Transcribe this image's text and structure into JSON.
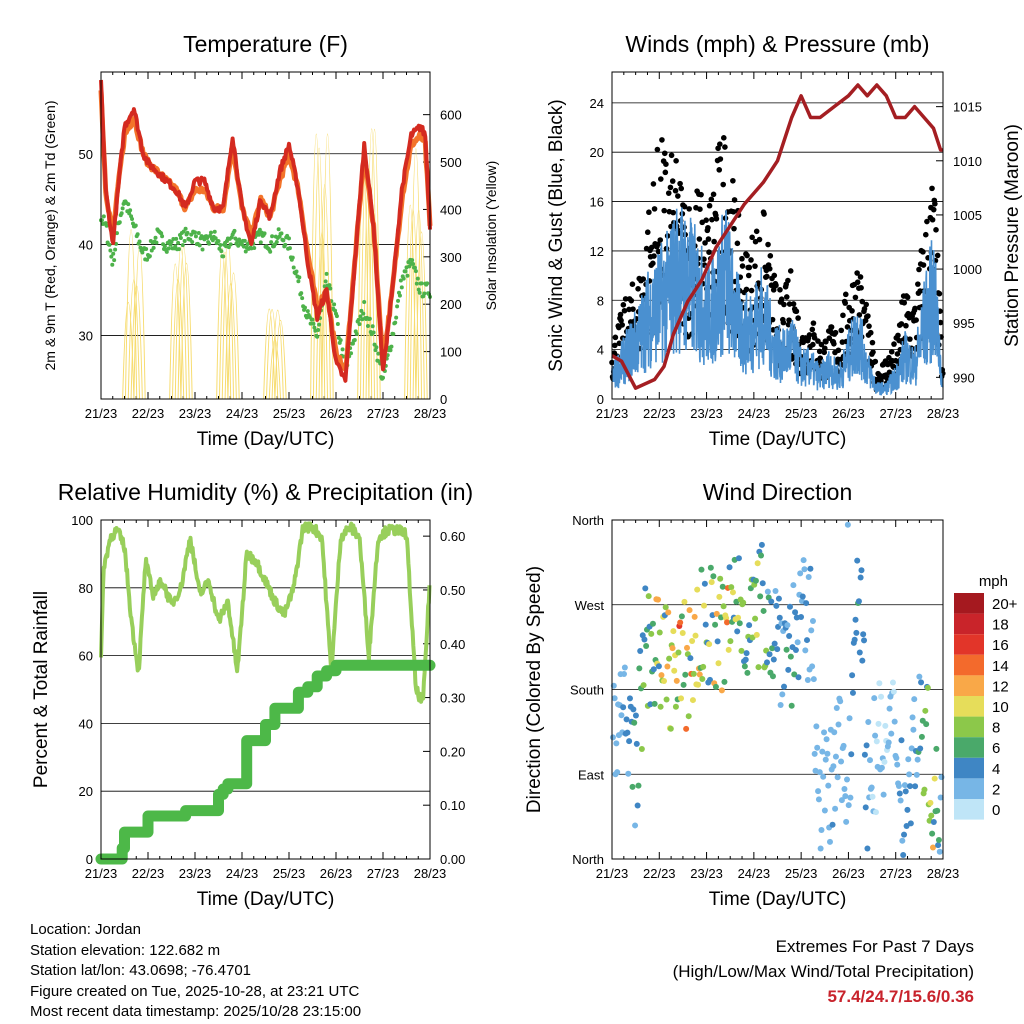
{
  "colors": {
    "red": "#d42a20",
    "orange": "#f3742a",
    "green_td": "#4db24a",
    "yellow": "#f7dc6f",
    "black": "#000000",
    "blue": "#4a90d0",
    "maroon": "#a41e22",
    "rh_green": "#98cf5b",
    "precip_green": "#4db848",
    "extremes_red": "#c8232c"
  },
  "time_ticks": [
    "21/23",
    "22/23",
    "23/23",
    "24/23",
    "25/23",
    "26/23",
    "27/23",
    "28/23"
  ],
  "chart_data": [
    {
      "id": "temperature",
      "type": "line",
      "title": "Temperature (F)",
      "xlabel": "Time (Day/UTC)",
      "ylabel": "2m & 9m T (Red, Orange) & 2m Td (Green)",
      "y2label": "Solar Insolation (Yellow)",
      "xlim": [
        0,
        7
      ],
      "ylim": [
        23,
        59
      ],
      "y2lim": [
        0,
        690
      ],
      "yticks": [
        30,
        40,
        50
      ],
      "y2ticks": [
        0,
        100,
        200,
        300,
        400,
        500,
        600
      ],
      "x": [
        0,
        0.1,
        0.25,
        0.4,
        0.5,
        0.7,
        0.9,
        1.0,
        1.2,
        1.4,
        1.6,
        1.8,
        2.0,
        2.2,
        2.4,
        2.6,
        2.8,
        3.0,
        3.2,
        3.4,
        3.6,
        3.8,
        4.0,
        4.2,
        4.4,
        4.6,
        4.8,
        5.0,
        5.2,
        5.4,
        5.6,
        5.8,
        6.0,
        6.2,
        6.4,
        6.6,
        6.8,
        6.9,
        7.0
      ],
      "series": [
        {
          "name": "2m T",
          "color": "#d42a20",
          "values": [
            58,
            46,
            40,
            48,
            53,
            55,
            50,
            49,
            48,
            47,
            46,
            44,
            47,
            47,
            44,
            44,
            52,
            44,
            40,
            45,
            43,
            48,
            51,
            46,
            38,
            32,
            35,
            27,
            25,
            38,
            51,
            42,
            26,
            35,
            46,
            52,
            53,
            52,
            42
          ]
        },
        {
          "name": "9m T",
          "color": "#f3742a",
          "values": [
            57,
            46,
            41,
            48,
            52,
            54,
            50,
            49,
            48,
            47,
            46,
            44,
            46,
            46,
            44,
            44,
            51,
            44,
            41,
            45,
            43,
            47,
            50,
            46,
            39,
            33,
            35,
            28,
            26,
            38,
            50,
            42,
            27,
            35,
            45,
            51,
            52,
            51,
            42
          ]
        },
        {
          "name": "2m Td",
          "color": "#4db24a",
          "values": [
            43,
            42,
            38,
            43,
            45,
            42,
            39,
            39,
            41,
            40,
            40,
            41,
            41,
            40,
            41,
            39,
            41,
            40,
            40,
            41,
            40,
            41,
            40,
            36,
            32,
            30,
            36,
            32,
            26,
            30,
            33,
            30,
            25,
            30,
            36,
            38,
            35,
            35,
            35
          ]
        }
      ],
      "insolation_peaks": [
        {
          "day": 0.7,
          "value": 390
        },
        {
          "day": 1.7,
          "value": 380
        },
        {
          "day": 2.7,
          "value": 390
        },
        {
          "day": 3.7,
          "value": 230
        },
        {
          "day": 4.7,
          "value": 610
        },
        {
          "day": 5.7,
          "value": 625
        },
        {
          "day": 6.7,
          "value": 600
        }
      ]
    },
    {
      "id": "winds",
      "type": "scatter",
      "title": "Winds (mph) & Pressure (mb)",
      "xlabel": "Time (Day/UTC)",
      "ylabel": "Sonic Wind & Gust (Blue, Black)",
      "y2label": "Station Pressure (Maroon)",
      "xlim": [
        0,
        7
      ],
      "ylim": [
        0,
        26.5
      ],
      "y2lim": [
        988,
        1018.2
      ],
      "yticks": [
        0,
        4,
        8,
        12,
        16,
        20,
        24
      ],
      "y2ticks": [
        990,
        995,
        1000,
        1005,
        1010,
        1015
      ],
      "wind_x": [
        0,
        0.3,
        0.6,
        0.8,
        1.0,
        1.2,
        1.4,
        1.6,
        1.8,
        2.0,
        2.2,
        2.4,
        2.6,
        2.8,
        3.0,
        3.2,
        3.4,
        3.6,
        3.8,
        4.0,
        4.2,
        4.4,
        4.6,
        4.8,
        5.0,
        5.2,
        5.4,
        5.6,
        5.8,
        6.0,
        6.2,
        6.4,
        6.6,
        6.8,
        7.0
      ],
      "wind": [
        2,
        4,
        6,
        8,
        9,
        10,
        12,
        11,
        10,
        8,
        9,
        12,
        8,
        6,
        7,
        8,
        5,
        4,
        5,
        3,
        3,
        2,
        3,
        2,
        4,
        6,
        3,
        1,
        1,
        2,
        4,
        3,
        7,
        10,
        1
      ],
      "gust": [
        4,
        7,
        9,
        14,
        18,
        17,
        16,
        14,
        15,
        13,
        17,
        19,
        14,
        10,
        12,
        13,
        9,
        7,
        9,
        5,
        6,
        4,
        5,
        5,
        8,
        10,
        6,
        2,
        3,
        4,
        8,
        7,
        12,
        16,
        2
      ],
      "pressure_x": [
        0,
        0.2,
        0.5,
        0.9,
        1.1,
        1.3,
        1.6,
        1.9,
        2.2,
        2.5,
        2.8,
        3.2,
        3.5,
        3.8,
        4.0,
        4.2,
        4.4,
        4.7,
        5.0,
        5.2,
        5.4,
        5.6,
        5.8,
        6.0,
        6.2,
        6.4,
        6.6,
        6.8,
        6.95,
        7.0
      ],
      "pressure": [
        992,
        991.5,
        989,
        989.8,
        991,
        994,
        997,
        999,
        1002,
        1004,
        1006,
        1008,
        1010,
        1014,
        1016,
        1014,
        1014,
        1015,
        1016,
        1017,
        1016,
        1017,
        1016,
        1014,
        1014,
        1015,
        1014,
        1013,
        1011,
        1011
      ]
    },
    {
      "id": "humidity",
      "type": "line",
      "title": "Relative Humidity (%) & Precipitation (in)",
      "xlabel": "Time (Day/UTC)",
      "ylabel": "Percent & Total Rainfall",
      "xlim": [
        0,
        7
      ],
      "ylim": [
        0,
        100
      ],
      "y2lim": [
        0,
        0.63
      ],
      "yticks": [
        0,
        20,
        40,
        60,
        80,
        100
      ],
      "y2ticks": [
        0.0,
        0.1,
        0.2,
        0.3,
        0.4,
        0.5,
        0.6
      ],
      "y2ticklabels": [
        "0.00",
        "0.10",
        "0.20",
        "0.30",
        "0.40",
        "0.50",
        "0.60"
      ],
      "rh_x": [
        0,
        0.05,
        0.2,
        0.35,
        0.5,
        0.65,
        0.8,
        0.95,
        1.1,
        1.3,
        1.5,
        1.7,
        1.9,
        2.1,
        2.3,
        2.5,
        2.7,
        2.9,
        3.1,
        3.3,
        3.5,
        3.7,
        3.9,
        4.1,
        4.3,
        4.5,
        4.7,
        4.9,
        5.1,
        5.3,
        5.5,
        5.7,
        5.9,
        6.1,
        6.3,
        6.5,
        6.7,
        6.85,
        7.0
      ],
      "rh": [
        58,
        85,
        95,
        97,
        92,
        70,
        55,
        88,
        78,
        82,
        75,
        80,
        95,
        78,
        82,
        70,
        76,
        55,
        90,
        88,
        82,
        76,
        72,
        80,
        98,
        98,
        95,
        55,
        95,
        98,
        95,
        60,
        95,
        97,
        97,
        96,
        50,
        46,
        83
      ],
      "precip_x": [
        0,
        0.3,
        0.45,
        0.5,
        0.9,
        1.0,
        1.7,
        1.8,
        2.0,
        2.5,
        2.6,
        2.7,
        3.0,
        3.1,
        3.4,
        3.5,
        3.7,
        4.0,
        4.2,
        4.4,
        4.6,
        4.8,
        5.0,
        7.0
      ],
      "precip": [
        0,
        0,
        0.02,
        0.05,
        0.05,
        0.08,
        0.08,
        0.09,
        0.09,
        0.12,
        0.13,
        0.14,
        0.14,
        0.22,
        0.22,
        0.25,
        0.28,
        0.28,
        0.31,
        0.32,
        0.34,
        0.35,
        0.36,
        0.36
      ]
    },
    {
      "id": "direction",
      "type": "scatter",
      "title": "Wind Direction",
      "xlabel": "Time (Day/UTC)",
      "ylabel": "Direction (Colored By Speed)",
      "xlim": [
        0,
        7
      ],
      "ylim": [
        0,
        360
      ],
      "ytick_values": [
        0,
        90,
        180,
        270,
        360
      ],
      "ytick_labels": [
        "North",
        "East",
        "South",
        "West",
        "North"
      ],
      "dir_x": [
        0,
        0.3,
        0.5,
        0.7,
        0.9,
        1.0,
        1.2,
        1.4,
        1.6,
        1.8,
        2.0,
        2.2,
        2.4,
        2.6,
        2.8,
        3.0,
        3.2,
        3.4,
        3.6,
        3.8,
        4.0,
        4.2,
        4.4,
        4.6,
        4.8,
        5.0,
        5.2,
        5.4,
        5.6,
        5.8,
        6.0,
        6.2,
        6.4,
        6.6,
        6.8,
        7.0
      ],
      "dir": [
        160,
        140,
        100,
        220,
        230,
        200,
        210,
        190,
        210,
        230,
        250,
        240,
        230,
        280,
        260,
        250,
        270,
        250,
        230,
        230,
        250,
        240,
        80,
        60,
        120,
        60,
        340,
        80,
        120,
        110,
        140,
        50,
        130,
        140,
        70,
        20
      ],
      "speed_legend": {
        "unit": "mph",
        "labels": [
          "20+",
          "18",
          "16",
          "14",
          "12",
          "10",
          "8",
          "6",
          "4",
          "2",
          "0"
        ],
        "colors": [
          "#a5191f",
          "#c9242a",
          "#e23529",
          "#f36a2c",
          "#f9a848",
          "#e6dd5a",
          "#8cc84a",
          "#4aa96a",
          "#3f86c4",
          "#77b6e6",
          "#bfe5f7"
        ]
      }
    }
  ],
  "info": {
    "location": "Location: Jordan",
    "elevation": "Station elevation: 122.682 m",
    "latlon": "Station lat/lon: 43.0698; -76.4701",
    "created": "Figure created on Tue, 2025-10-28, at 23:21 UTC",
    "timestamp": "Most recent data timestamp: 2025/10/28 23:15:00"
  },
  "extremes": {
    "title": "Extremes For Past 7 Days",
    "subtitle": "(High/Low/Max Wind/Total Precipitation)",
    "values": "57.4/24.7/15.6/0.36"
  }
}
